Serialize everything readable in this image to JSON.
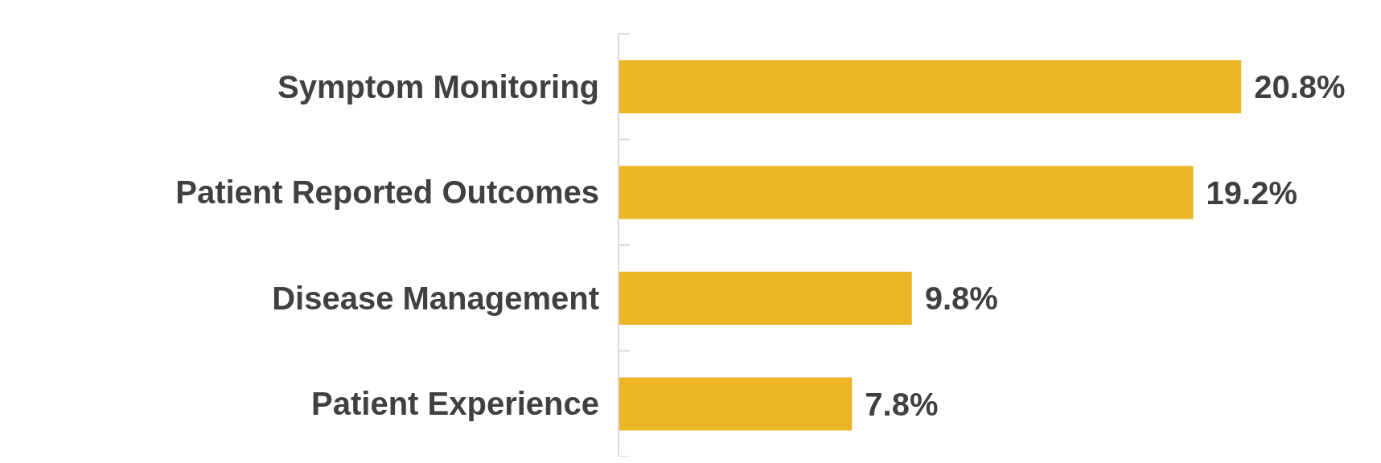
{
  "chart_data": {
    "type": "bar",
    "orientation": "horizontal",
    "categories": [
      "Symptom Monitoring",
      "Patient Reported Outcomes",
      "Disease Management",
      "Patient Experience"
    ],
    "values": [
      20.8,
      19.2,
      9.8,
      7.8
    ],
    "value_labels": [
      "20.8%",
      "19.2%",
      "9.8%",
      "7.8%"
    ],
    "color": "#ebb526",
    "grid": false,
    "legend": false
  }
}
